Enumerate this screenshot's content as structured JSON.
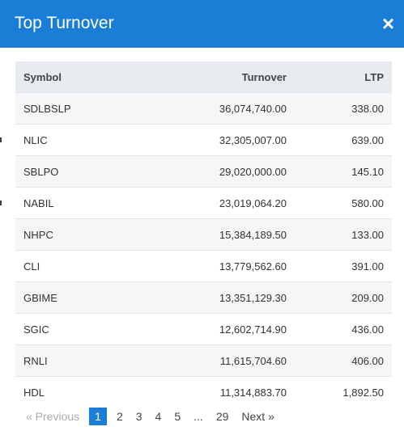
{
  "modal": {
    "title": "Top Turnover",
    "close_glyph": "×"
  },
  "table": {
    "headers": {
      "symbol": "Symbol",
      "turnover": "Turnover",
      "ltp": "LTP"
    },
    "rows": [
      {
        "symbol": "SDLBSLP",
        "turnover": "36,074,740.00",
        "ltp": "338.00"
      },
      {
        "symbol": "NLIC",
        "turnover": "32,305,007.00",
        "ltp": "639.00"
      },
      {
        "symbol": "SBLPO",
        "turnover": "29,020,000.00",
        "ltp": "145.10"
      },
      {
        "symbol": "NABIL",
        "turnover": "23,019,064.20",
        "ltp": "580.00"
      },
      {
        "symbol": "NHPC",
        "turnover": "15,384,189.50",
        "ltp": "133.00"
      },
      {
        "symbol": "CLI",
        "turnover": "13,779,562.60",
        "ltp": "391.00"
      },
      {
        "symbol": "GBIME",
        "turnover": "13,351,129.30",
        "ltp": "209.00"
      },
      {
        "symbol": "SGIC",
        "turnover": "12,602,714.90",
        "ltp": "436.00"
      },
      {
        "symbol": "RNLI",
        "turnover": "11,615,704.60",
        "ltp": "406.00"
      },
      {
        "symbol": "HDL",
        "turnover": "11,314,883.70",
        "ltp": "1,892.50"
      }
    ]
  },
  "pagination": {
    "prev_label": "« Previous",
    "pages": [
      "1",
      "2",
      "3",
      "4",
      "5",
      "...",
      "29"
    ],
    "active_page": "1",
    "next_label": "Next »"
  },
  "colors": {
    "header_bg": "#1a7ed6",
    "active_page_bg": "#1a7ed6",
    "row_alt_bg": "#f5f6f7",
    "thead_bg": "#e8ecf0"
  }
}
